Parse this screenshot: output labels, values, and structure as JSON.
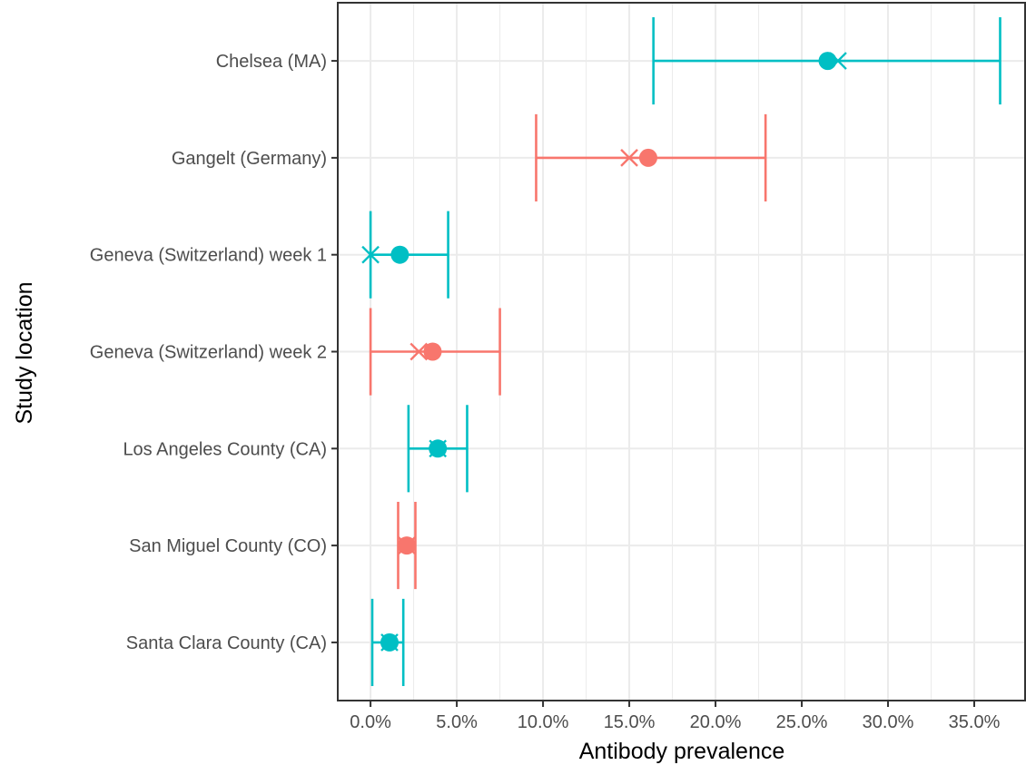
{
  "chart_data": {
    "type": "errorbar",
    "title": "",
    "xlabel": "Antibody prevalence",
    "ylabel": "Study location",
    "xlim": [
      -0.019,
      0.38
    ],
    "x_ticks": [
      0.0,
      0.05,
      0.1,
      0.15,
      0.2,
      0.25,
      0.3,
      0.35
    ],
    "x_tick_labels": [
      "0.0%",
      "5.0%",
      "10.0%",
      "15.0%",
      "20.0%",
      "25.0%",
      "30.0%",
      "35.0%"
    ],
    "grid": true,
    "legend": "none",
    "colors": {
      "teal": "#00BFC4",
      "salmon": "#F8766D"
    },
    "categories": [
      "Chelsea (MA)",
      "Gangelt (Germany)",
      "Geneva (Switzerland) week 1",
      "Geneva (Switzerland) week 2",
      "Los Angeles County (CA)",
      "San Miguel County (CO)",
      "Santa Clara County (CA)"
    ],
    "points": [
      {
        "location": "Chelsea (MA)",
        "estimate": 0.265,
        "x_marker": 0.271,
        "ci_low": 0.164,
        "ci_high": 0.365,
        "color": "#00BFC4"
      },
      {
        "location": "Gangelt (Germany)",
        "estimate": 0.161,
        "x_marker": 0.15,
        "ci_low": 0.096,
        "ci_high": 0.229,
        "color": "#F8766D"
      },
      {
        "location": "Geneva (Switzerland) week 1",
        "estimate": 0.017,
        "x_marker": 0.0,
        "ci_low": 0.0,
        "ci_high": 0.045,
        "color": "#00BFC4"
      },
      {
        "location": "Geneva (Switzerland) week 2",
        "estimate": 0.036,
        "x_marker": 0.028,
        "ci_low": 0.0,
        "ci_high": 0.075,
        "color": "#F8766D"
      },
      {
        "location": "Los Angeles County (CA)",
        "estimate": 0.039,
        "x_marker": 0.039,
        "ci_low": 0.022,
        "ci_high": 0.056,
        "color": "#00BFC4"
      },
      {
        "location": "San Miguel County (CO)",
        "estimate": 0.021,
        "x_marker": 0.021,
        "ci_low": 0.016,
        "ci_high": 0.026,
        "color": "#F8766D"
      },
      {
        "location": "Santa Clara County (CA)",
        "estimate": 0.011,
        "x_marker": 0.011,
        "ci_low": 0.001,
        "ci_high": 0.019,
        "color": "#00BFC4"
      }
    ]
  }
}
